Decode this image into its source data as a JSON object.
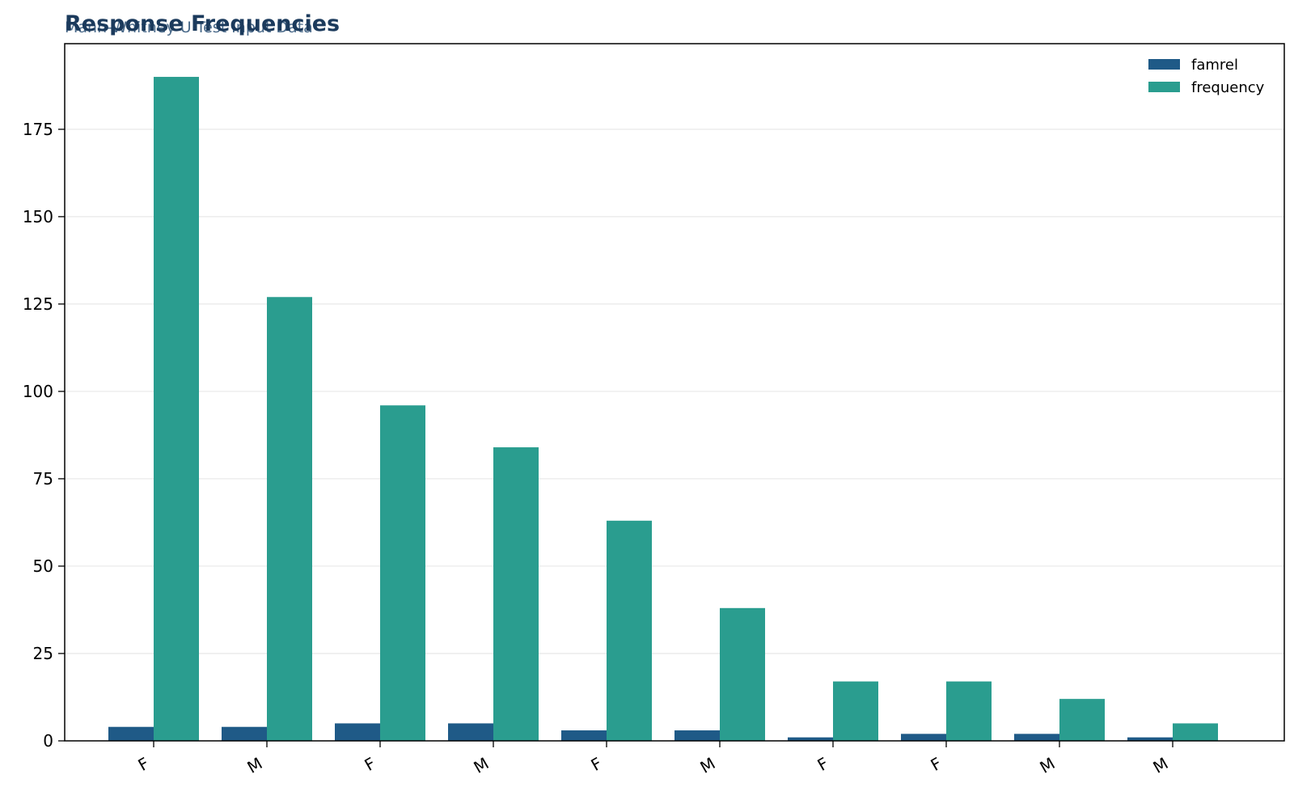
{
  "chart_data": {
    "type": "bar",
    "title": "Response Frequencies",
    "subtitle": "Mann-Whitney U Test Input Data",
    "xlabel": "",
    "ylabel": "",
    "categories": [
      "F",
      "M",
      "F",
      "M",
      "F",
      "M",
      "F",
      "F",
      "M",
      "M"
    ],
    "series": [
      {
        "name": "famrel",
        "color": "#1f5a87",
        "values": [
          4,
          4,
          5,
          5,
          3,
          3,
          1,
          2,
          2,
          1
        ]
      },
      {
        "name": "frequency",
        "color": "#2a9d8f",
        "values": [
          190,
          127,
          96,
          84,
          63,
          38,
          17,
          17,
          12,
          5
        ]
      }
    ],
    "ylim": [
      0,
      199.5
    ],
    "yticks": [
      0,
      25,
      50,
      75,
      100,
      125,
      150,
      175
    ],
    "grid": "horizontal",
    "legend_position": "top-right",
    "title_color": "#1b3a5c",
    "subtitle_color": "#4a6a8a"
  }
}
